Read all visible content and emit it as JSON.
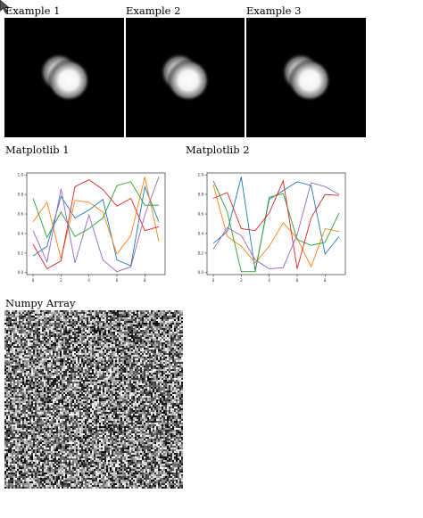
{
  "examples": [
    {
      "label": "Example 1"
    },
    {
      "label": "Example 2"
    },
    {
      "label": "Example 3"
    }
  ],
  "plots": [
    {
      "label": "Matplotlib 1",
      "chart_data": {
        "type": "line",
        "title": "",
        "xlabel": "",
        "ylabel": "",
        "xlim": [
          -0.45,
          9.45
        ],
        "ylim": [
          -0.02,
          1.02
        ],
        "x_ticks": [
          0,
          2,
          4,
          6,
          8
        ],
        "y_ticks": [
          0.0,
          0.2,
          0.4,
          0.6,
          0.8,
          1.0
        ],
        "x_tick_labels": [
          "0",
          "2",
          "4",
          "6",
          "8"
        ],
        "y_tick_labels": [
          "0.0",
          "0.2",
          "0.4",
          "0.6",
          "0.8",
          "1.0"
        ],
        "grid": false,
        "x": [
          0,
          1,
          2,
          3,
          4,
          5,
          6,
          7,
          8,
          9
        ],
        "series": [
          {
            "color": "#1f77b4",
            "values": [
              0.17,
              0.27,
              0.78,
              0.56,
              0.64,
              0.75,
              0.13,
              0.07,
              0.88,
              0.52
            ]
          },
          {
            "color": "#ff7f0e",
            "values": [
              0.52,
              0.72,
              0.14,
              0.74,
              0.72,
              0.62,
              0.19,
              0.38,
              0.98,
              0.32
            ]
          },
          {
            "color": "#2ca02c",
            "values": [
              0.76,
              0.36,
              0.62,
              0.37,
              0.45,
              0.56,
              0.89,
              0.93,
              0.69,
              0.69
            ]
          },
          {
            "color": "#d62728",
            "values": [
              0.29,
              0.04,
              0.12,
              0.88,
              0.95,
              0.85,
              0.68,
              0.76,
              0.43,
              0.47
            ]
          },
          {
            "color": "#9467bd",
            "values": [
              0.43,
              0.11,
              0.86,
              0.1,
              0.59,
              0.13,
              0.01,
              0.06,
              0.59,
              0.98
            ]
          }
        ]
      }
    },
    {
      "label": "Matplotlib 2",
      "chart_data": {
        "type": "line",
        "title": "",
        "xlabel": "",
        "ylabel": "",
        "xlim": [
          -0.45,
          9.45
        ],
        "ylim": [
          -0.02,
          1.02
        ],
        "x_ticks": [
          0,
          2,
          4,
          6,
          8
        ],
        "y_ticks": [
          0.0,
          0.2,
          0.4,
          0.6,
          0.8,
          1.0
        ],
        "x_tick_labels": [
          "0",
          "2",
          "4",
          "6",
          "8"
        ],
        "y_tick_labels": [
          "0.0",
          "0.2",
          "0.4",
          "0.6",
          "0.8",
          "1.0"
        ],
        "grid": false,
        "x": [
          0,
          1,
          2,
          3,
          4,
          5,
          6,
          7,
          8,
          9
        ],
        "series": [
          {
            "color": "#1f77b4",
            "values": [
              0.3,
              0.42,
              0.98,
              0.02,
              0.75,
              0.84,
              0.93,
              0.89,
              0.19,
              0.37
            ]
          },
          {
            "color": "#ff7f0e",
            "values": [
              0.9,
              0.37,
              0.27,
              0.1,
              0.27,
              0.51,
              0.35,
              0.06,
              0.45,
              0.42
            ]
          },
          {
            "color": "#2ca02c",
            "values": [
              0.94,
              0.62,
              0.01,
              0.01,
              0.77,
              0.81,
              0.34,
              0.28,
              0.31,
              0.61
            ]
          },
          {
            "color": "#d62728",
            "values": [
              0.76,
              0.82,
              0.45,
              0.43,
              0.61,
              0.94,
              0.04,
              0.56,
              0.8,
              0.79
            ]
          },
          {
            "color": "#9467bd",
            "values": [
              0.24,
              0.46,
              0.38,
              0.13,
              0.04,
              0.05,
              0.39,
              0.92,
              0.88,
              0.8
            ]
          }
        ]
      }
    }
  ],
  "numpy": {
    "label": "Numpy Array"
  },
  "icons": {
    "cursor": "cursor-arrow-icon"
  }
}
